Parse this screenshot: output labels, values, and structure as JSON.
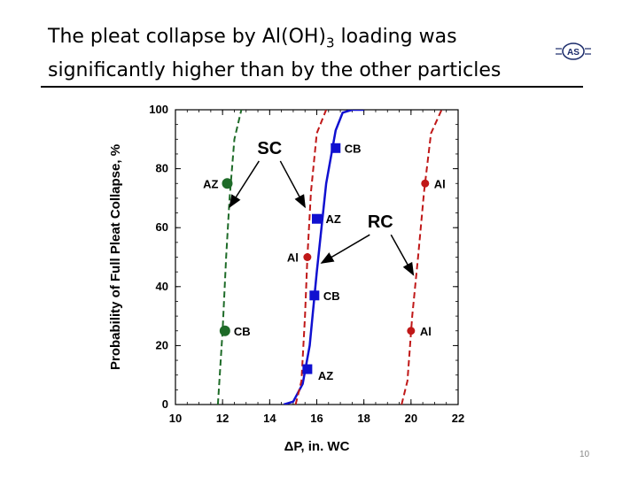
{
  "slide": {
    "title_line1": "The pleat collapse by Al(OH)",
    "title_sub": "3",
    "title_line1_end": " loading was",
    "title_line2": "significantly higher than by the other particles",
    "logo_text": "AS",
    "page_number": "10"
  },
  "chart_data": {
    "type": "scatter",
    "xlabel": "ΔP, in. WC",
    "ylabel": "Probability of Full Pleat Collapse, %",
    "xlim": [
      10,
      22
    ],
    "ylim": [
      0,
      100
    ],
    "xticks": [
      "10",
      "12",
      "14",
      "16",
      "18",
      "20",
      "22"
    ],
    "yticks": [
      "0",
      "20",
      "40",
      "60",
      "80",
      "100"
    ],
    "grid": false,
    "series": [
      {
        "group": "green",
        "color": "#1e6b28",
        "marker": "circle",
        "curve": "dashed",
        "points": [
          {
            "x": 12.2,
            "y": 75,
            "label": "AZ",
            "label_side": "left"
          },
          {
            "x": 12.1,
            "y": 25,
            "label": "CB",
            "label_side": "right"
          }
        ],
        "curve_x": [
          11.8,
          12.0,
          12.15,
          12.3,
          12.5,
          12.8
        ],
        "curve_y": [
          0,
          25,
          50,
          70,
          90,
          100
        ]
      },
      {
        "group": "blue",
        "color": "#1010d0",
        "marker": "square",
        "curve": "solid",
        "points": [
          {
            "x": 16.8,
            "y": 87,
            "label": "CB",
            "label_side": "right"
          },
          {
            "x": 16.0,
            "y": 63,
            "label": "AZ",
            "label_side": "right"
          },
          {
            "x": 15.9,
            "y": 37,
            "label": "CB",
            "label_side": "right"
          },
          {
            "x": 15.6,
            "y": 12,
            "label": "AZ",
            "label_side": "right-low"
          }
        ],
        "curve_x": [
          14.6,
          15.0,
          15.4,
          15.7,
          16.0,
          16.4,
          16.8,
          17.1,
          17.5,
          18.0
        ],
        "curve_y": [
          0,
          1,
          7,
          20,
          45,
          75,
          93,
          99,
          100,
          100
        ]
      },
      {
        "group": "red-left",
        "color": "#c01818",
        "marker": "circle",
        "curve": "dashed",
        "points": [
          {
            "x": 15.6,
            "y": 50,
            "label": "Al",
            "label_side": "left"
          }
        ],
        "curve_x": [
          15.1,
          15.35,
          15.5,
          15.6,
          15.75,
          16.0,
          16.4
        ],
        "curve_y": [
          0,
          8,
          30,
          50,
          72,
          92,
          100
        ]
      },
      {
        "group": "red-right",
        "color": "#c01818",
        "marker": "circle",
        "curve": "dashed",
        "points": [
          {
            "x": 20.6,
            "y": 75,
            "label": "Al",
            "label_side": "right"
          },
          {
            "x": 20.0,
            "y": 25,
            "label": "Al",
            "label_side": "right"
          }
        ],
        "curve_x": [
          19.6,
          19.85,
          20.05,
          20.3,
          20.55,
          20.85,
          21.3
        ],
        "curve_y": [
          0,
          8,
          30,
          50,
          72,
          92,
          100
        ]
      }
    ],
    "annotations": [
      {
        "text": "SC",
        "x": 14.0,
        "y": 85,
        "arrows": [
          {
            "x": 12.3,
            "y": 67
          },
          {
            "x": 15.5,
            "y": 67
          }
        ]
      },
      {
        "text": "RC",
        "x": 18.7,
        "y": 60,
        "arrows": [
          {
            "x": 16.2,
            "y": 48
          },
          {
            "x": 20.1,
            "y": 44
          }
        ]
      }
    ]
  }
}
